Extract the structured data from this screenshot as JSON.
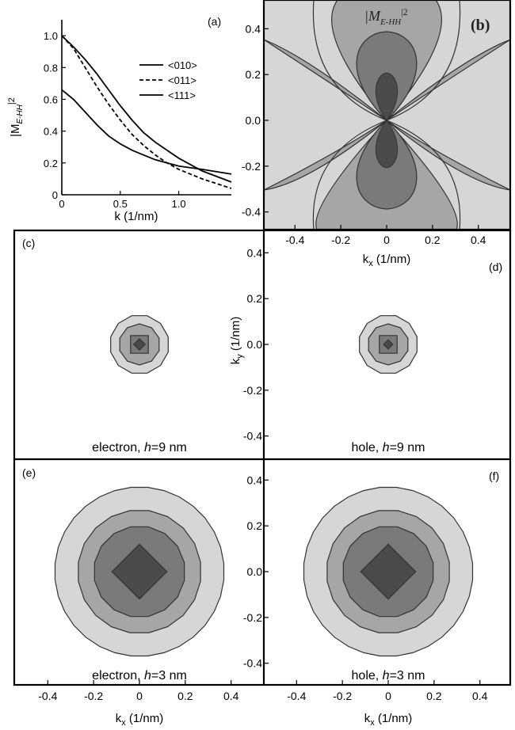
{
  "chart_data": [
    {
      "panel": "(a)",
      "type": "line",
      "xlabel": "k (1/nm)",
      "ylabel": "|M",
      "ylabel_sub": "E-HH",
      "ylabel_sup": "|2",
      "xlim": [
        0,
        1.45
      ],
      "ylim": [
        0,
        1.1
      ],
      "xticks": [
        "0",
        "0.5",
        "1.0"
      ],
      "yticks": [
        "0",
        "0.2",
        "0.4",
        "0.6",
        "0.8",
        "1.0"
      ],
      "legend_position": "top-right",
      "series": [
        {
          "name": "<010>",
          "style": "solid",
          "x": [
            0,
            0.1,
            0.2,
            0.3,
            0.4,
            0.5,
            0.6,
            0.7,
            0.8,
            0.9,
            1.0,
            1.2,
            1.45
          ],
          "y": [
            1.0,
            0.93,
            0.85,
            0.76,
            0.66,
            0.56,
            0.47,
            0.39,
            0.33,
            0.28,
            0.23,
            0.15,
            0.08
          ]
        },
        {
          "name": "<011>",
          "style": "dashed",
          "x": [
            0,
            0.1,
            0.2,
            0.3,
            0.4,
            0.5,
            0.6,
            0.7,
            0.8,
            0.9,
            1.0,
            1.2,
            1.45
          ],
          "y": [
            1.0,
            0.92,
            0.8,
            0.68,
            0.57,
            0.47,
            0.38,
            0.31,
            0.25,
            0.2,
            0.16,
            0.1,
            0.04
          ]
        },
        {
          "name": "<111>",
          "style": "solid",
          "x": [
            0,
            0.1,
            0.2,
            0.3,
            0.4,
            0.5,
            0.6,
            0.7,
            0.8,
            0.9,
            1.0,
            1.2,
            1.45
          ],
          "y": [
            0.66,
            0.6,
            0.52,
            0.44,
            0.37,
            0.32,
            0.28,
            0.25,
            0.22,
            0.2,
            0.18,
            0.16,
            0.13
          ]
        }
      ]
    },
    {
      "panel": "(b)",
      "type": "heatmap",
      "annotation_base": "|M",
      "annotation_sub": "E-HH",
      "annotation_sup": "|2",
      "xlabel": "k",
      "xlabel_sub": "x",
      "xlabel_unit": " (1/nm)",
      "xlim": [
        -0.5,
        0.5
      ],
      "ylim": [
        -0.5,
        0.5
      ],
      "xticks": [
        "-0.4",
        "-0.2",
        "0",
        "0.2",
        "0.4"
      ],
      "yticks": [
        "0.4",
        "0.2",
        "0.0",
        "-0.2",
        "-0.4"
      ],
      "levels": 4
    },
    {
      "panel": "(c)",
      "type": "heatmap",
      "caption": "electron, ",
      "caption_italic": "h",
      "caption_rest": "=9 nm",
      "center": [
        0,
        0
      ],
      "level_radii": [
        0.13,
        0.09,
        0.055,
        0.025
      ],
      "levels": 4
    },
    {
      "panel": "(d)",
      "type": "heatmap",
      "caption": "hole, ",
      "caption_italic": "h",
      "caption_rest": "=9 nm",
      "ylabel": "k",
      "ylabel_sub": "y",
      "ylabel_unit": " (1/nm)",
      "yticks": [
        "0.4",
        "0.2",
        "0.0",
        "-0.2",
        "-0.4"
      ],
      "center": [
        0,
        0
      ],
      "level_radii": [
        0.13,
        0.09,
        0.055,
        0.02
      ],
      "levels": 4
    },
    {
      "panel": "(e)",
      "type": "heatmap",
      "caption": "electron, ",
      "caption_italic": "h",
      "caption_rest": "=3 nm",
      "xlabel": "k",
      "xlabel_sub": "x",
      "xlabel_unit": " (1/nm)",
      "xticks": [
        "-0.4",
        "-0.2",
        "0",
        "0.2",
        "0.4"
      ],
      "center": [
        0,
        0
      ],
      "level_radii": [
        0.37,
        0.27,
        0.2,
        0.12
      ],
      "levels": 4
    },
    {
      "panel": "(f)",
      "type": "heatmap",
      "caption": "hole, ",
      "caption_italic": "h",
      "caption_rest": "=3 nm",
      "xlabel": "k",
      "xlabel_sub": "x",
      "xlabel_unit": " (1/nm)",
      "xticks": [
        "-0.4",
        "-0.2",
        "0",
        "0.2",
        "0.4"
      ],
      "yticks": [
        "0.4",
        "0.2",
        "0.0",
        "-0.2",
        "-0.4"
      ],
      "center": [
        0,
        0
      ],
      "level_radii": [
        0.37,
        0.27,
        0.2,
        0.12
      ],
      "levels": 4
    }
  ],
  "colors": {
    "level_0": "#ffffff",
    "level_1": "#d6d6d6",
    "level_2": "#a6a6a6",
    "level_3": "#7a7a7a",
    "level_4": "#4a4a4a",
    "stroke": "#333333"
  }
}
